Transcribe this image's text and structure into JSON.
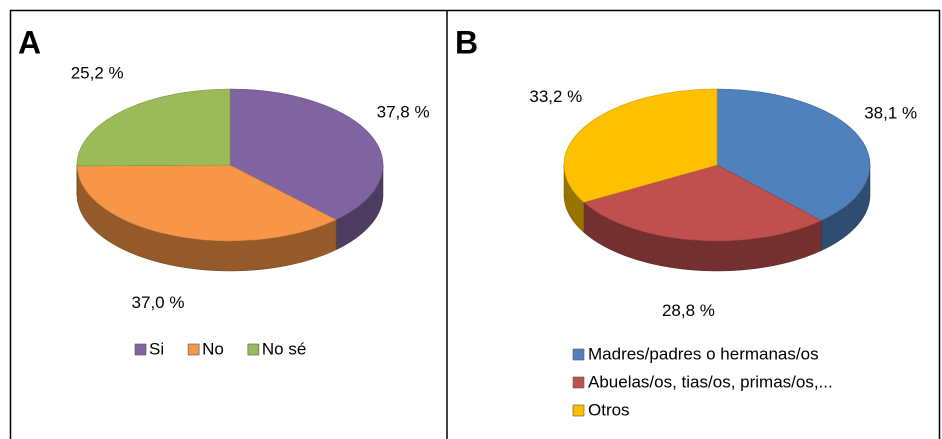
{
  "chart_data": [
    {
      "type": "pie",
      "title": "A",
      "categories": [
        "Si",
        "No",
        "No sé"
      ],
      "values": [
        37.8,
        37.0,
        25.2
      ],
      "value_labels": [
        "37,8 %",
        "37,0 %",
        "25,2 %"
      ],
      "colors": [
        "#8064a2",
        "#f79646",
        "#9bbb59"
      ],
      "legend": "bottom"
    },
    {
      "type": "pie",
      "title": "B",
      "categories": [
        "Madres/padres o hermanas/os",
        "Abuelas/os, tias/os, primas/os,...",
        "Otros"
      ],
      "values": [
        38.1,
        28.8,
        33.2
      ],
      "value_labels": [
        "38,1 %",
        "28,8 %",
        "33,2 %"
      ],
      "colors": [
        "#4f81bd",
        "#c0504d",
        "#ffc000"
      ],
      "legend": "bottom"
    }
  ]
}
